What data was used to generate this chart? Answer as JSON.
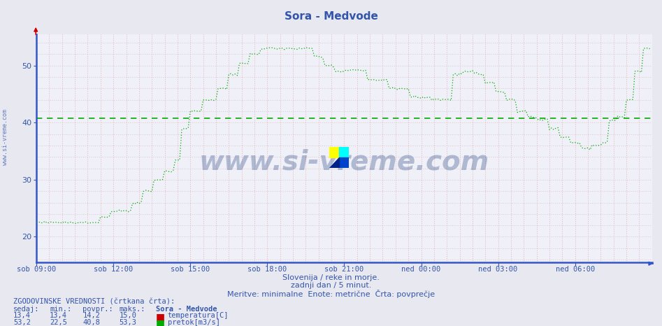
{
  "title": "Sora - Medvode",
  "title_color": "#3355aa",
  "bg_color": "#e8e8f0",
  "plot_bg_color": "#f0f0f8",
  "ylim": [
    15.5,
    55.5
  ],
  "yticks": [
    20,
    30,
    40,
    50
  ],
  "xlabel_color": "#3355aa",
  "time_labels": [
    "sob 09:00",
    "sob 12:00",
    "sob 15:00",
    "sob 18:00",
    "sob 21:00",
    "ned 00:00",
    "ned 03:00",
    "ned 06:00"
  ],
  "text_lines": [
    "Slovenija / reke in morje.",
    "zadnji dan / 5 minut.",
    "Meritve: minimalne  Enote: metrične  Črta: povprečje"
  ],
  "hist_avg_flow": 40.8,
  "hist_avg_temp": 14.2,
  "temp_color": "#cc0000",
  "flow_color": "#00aa00",
  "watermark_text": "www.si-vreme.com",
  "watermark_color": "#1a3a7a",
  "watermark_alpha": 0.3,
  "sidebar_text": "www.si-vreme.com",
  "sidebar_color": "#3355aa",
  "bottom_label": "ZGODOVINSKE VREDNOSTI (črtkana črta):",
  "col_headers": [
    "sedaj:",
    "min.:",
    "povpr.:",
    "maks.:",
    "Sora - Medvode"
  ],
  "temp_row": [
    "13,4",
    "13,4",
    "14,2",
    "15,0",
    "temperatura[C]"
  ],
  "flow_row": [
    "53,2",
    "22,5",
    "40,8",
    "53,3",
    "pretok[m3/s]"
  ],
  "n_points": 288
}
